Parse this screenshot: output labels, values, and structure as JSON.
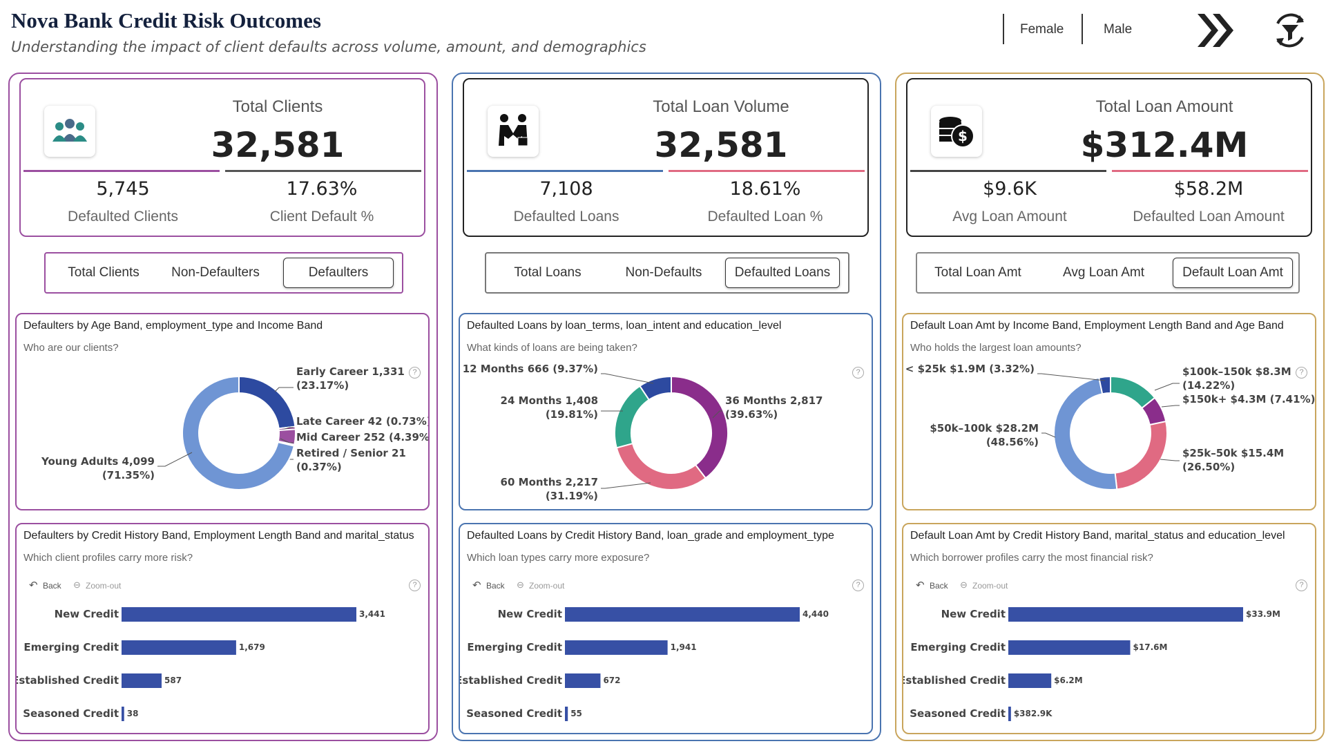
{
  "header": {
    "title": "Nova Bank Credit Risk Outcomes",
    "subtitle": "Understanding the impact of client defaults across volume, amount, and demographics",
    "slicer": [
      "Female",
      "Male"
    ],
    "icons": [
      "chevrons-right-icon",
      "filter-reset-icon"
    ]
  },
  "colors": {
    "purple": "#9b4fa0",
    "blue": "#4a74b0",
    "gold": "#c9a55c",
    "bar": "#3750a5",
    "dark_blue": "#2d4aa0",
    "light_blue": "#6f95d4",
    "teal": "#2fa58b",
    "pink": "#e06a82",
    "violet": "#8a2d8b"
  },
  "panels": [
    {
      "kpi": {
        "icon": "people-group-icon",
        "title": "Total Clients",
        "value": "32,581",
        "sub": [
          {
            "value": "5,745",
            "label": "Defaulted Clients"
          },
          {
            "value": "17.63%",
            "label": "Client Default %"
          }
        ]
      },
      "toggle": {
        "options": [
          "Total Clients",
          "Non-Defaulters",
          "Defaulters"
        ],
        "active": "Defaulters"
      },
      "donut": {
        "title": "Defaulters by Age Band, employment_type and Income Band",
        "subtitle": "Who are our clients?",
        "slices": [
          {
            "label": "Early Career 1,331",
            "pct": "(23.17%)",
            "value": 1331
          },
          {
            "label": "Late Career 42 (0.73%)",
            "pct": "",
            "value": 42
          },
          {
            "label": "Mid Career 252 (4.39%)",
            "pct": "",
            "value": 252
          },
          {
            "label": "Retired / Senior 21",
            "pct": "(0.37%)",
            "value": 21
          },
          {
            "label": "Young Adults 4,099",
            "pct": "(71.35%)",
            "value": 4099
          }
        ]
      },
      "bars": {
        "title": "Defaulters by Credit History Band, Employment Length Band and marital_status",
        "subtitle": "Which client profiles carry more risk?",
        "back": "Back",
        "zoom": "Zoom-out",
        "items": [
          {
            "label": "New Credit",
            "value": 3441,
            "text": "3,441"
          },
          {
            "label": "Emerging Credit",
            "value": 1679,
            "text": "1,679"
          },
          {
            "label": "Established Credit",
            "value": 587,
            "text": "587"
          },
          {
            "label": "Seasoned Credit",
            "value": 38,
            "text": "38"
          }
        ]
      }
    },
    {
      "kpi": {
        "icon": "handshake-icon",
        "title": "Total Loan Volume",
        "value": "32,581",
        "sub": [
          {
            "value": "7,108",
            "label": "Defaulted Loans"
          },
          {
            "value": "18.61%",
            "label": "Defaulted Loan %"
          }
        ]
      },
      "toggle": {
        "options": [
          "Total Loans",
          "Non-Defaults",
          "Defaulted Loans"
        ],
        "active": "Defaulted Loans"
      },
      "donut": {
        "title": "Defaulted Loans by loan_terms, loan_intent and education_level",
        "subtitle": "What kinds of loans are being taken?",
        "slices": [
          {
            "label": "36 Months 2,817",
            "pct": "(39.63%)",
            "value": 2817
          },
          {
            "label": "60 Months 2,217",
            "pct": "(31.19%)",
            "value": 2217
          },
          {
            "label": "24 Months 1,408",
            "pct": "(19.81%)",
            "value": 1408
          },
          {
            "label": "12 Months 666 (9.37%)",
            "pct": "",
            "value": 666
          }
        ]
      },
      "bars": {
        "title": "Defaulted Loans by Credit History Band, loan_grade and employment_type",
        "subtitle": "Which loan types carry more exposure?",
        "back": "Back",
        "zoom": "Zoom-out",
        "items": [
          {
            "label": "New Credit",
            "value": 4440,
            "text": "4,440"
          },
          {
            "label": "Emerging Credit",
            "value": 1941,
            "text": "1,941"
          },
          {
            "label": "Established Credit",
            "value": 672,
            "text": "672"
          },
          {
            "label": "Seasoned Credit",
            "value": 55,
            "text": "55"
          }
        ]
      }
    },
    {
      "kpi": {
        "icon": "coins-dollar-icon",
        "title": "Total Loan Amount",
        "value": "$312.4M",
        "sub": [
          {
            "value": "$9.6K",
            "label": "Avg Loan Amount"
          },
          {
            "value": "$58.2M",
            "label": "Defaulted Loan Amount"
          }
        ]
      },
      "toggle": {
        "options": [
          "Total Loan Amt",
          "Avg Loan Amt",
          "Default Loan Amt"
        ],
        "active": "Default Loan Amt"
      },
      "donut": {
        "title": "Default Loan Amt by Income Band, Employment Length Band and Age Band",
        "subtitle": "Who holds the largest loan amounts?",
        "slices": [
          {
            "label": "$100k–150k $8.3M",
            "pct": "(14.22%)",
            "value": 8.3
          },
          {
            "label": "$150k+ $4.3M (7.41%)",
            "pct": "",
            "value": 4.3
          },
          {
            "label": "$25k–50k $15.4M",
            "pct": "(26.50%)",
            "value": 15.4
          },
          {
            "label": "$50k–100k $28.2M",
            "pct": "(48.56%)",
            "value": 28.2
          },
          {
            "label": "< $25k $1.9M (3.32%)",
            "pct": "",
            "value": 1.9
          }
        ]
      },
      "bars": {
        "title": "Default Loan Amt by Credit History Band, marital_status and education_level",
        "subtitle": "Which borrower profiles carry the most financial risk?",
        "back": "Back",
        "zoom": "Zoom-out",
        "items": [
          {
            "label": "New Credit",
            "value": 33.9,
            "text": "$33.9M"
          },
          {
            "label": "Emerging Credit",
            "value": 17.6,
            "text": "$17.6M"
          },
          {
            "label": "Established Credit",
            "value": 6.2,
            "text": "$6.2M"
          },
          {
            "label": "Seasoned Credit",
            "value": 0.3829,
            "text": "$382.9K"
          }
        ]
      }
    }
  ],
  "chart_data": [
    {
      "type": "pie",
      "title": "Defaulters by Age Band, employment_type and Income Band",
      "categories": [
        "Early Career",
        "Late Career",
        "Mid Career",
        "Retired / Senior",
        "Young Adults"
      ],
      "values": [
        1331,
        42,
        252,
        21,
        4099
      ]
    },
    {
      "type": "bar",
      "title": "Defaulters by Credit History Band, Employment Length Band and marital_status",
      "categories": [
        "New Credit",
        "Emerging Credit",
        "Established Credit",
        "Seasoned Credit"
      ],
      "values": [
        3441,
        1679,
        587,
        38
      ]
    },
    {
      "type": "pie",
      "title": "Defaulted Loans by loan_terms, loan_intent and education_level",
      "categories": [
        "36 Months",
        "60 Months",
        "24 Months",
        "12 Months"
      ],
      "values": [
        2817,
        2217,
        1408,
        666
      ]
    },
    {
      "type": "bar",
      "title": "Defaulted Loans by Credit History Band, loan_grade and employment_type",
      "categories": [
        "New Credit",
        "Emerging Credit",
        "Established Credit",
        "Seasoned Credit"
      ],
      "values": [
        4440,
        1941,
        672,
        55
      ]
    },
    {
      "type": "pie",
      "title": "Default Loan Amt by Income Band, Employment Length Band and Age Band",
      "categories": [
        "$100k–150k",
        "$150k+",
        "$25k–50k",
        "$50k–100k",
        "< $25k"
      ],
      "values": [
        8.3,
        4.3,
        15.4,
        28.2,
        1.9
      ]
    },
    {
      "type": "bar",
      "title": "Default Loan Amt by Credit History Band, marital_status and education_level",
      "categories": [
        "New Credit",
        "Emerging Credit",
        "Established Credit",
        "Seasoned Credit"
      ],
      "values": [
        33.9,
        17.6,
        6.2,
        0.3829
      ]
    }
  ]
}
